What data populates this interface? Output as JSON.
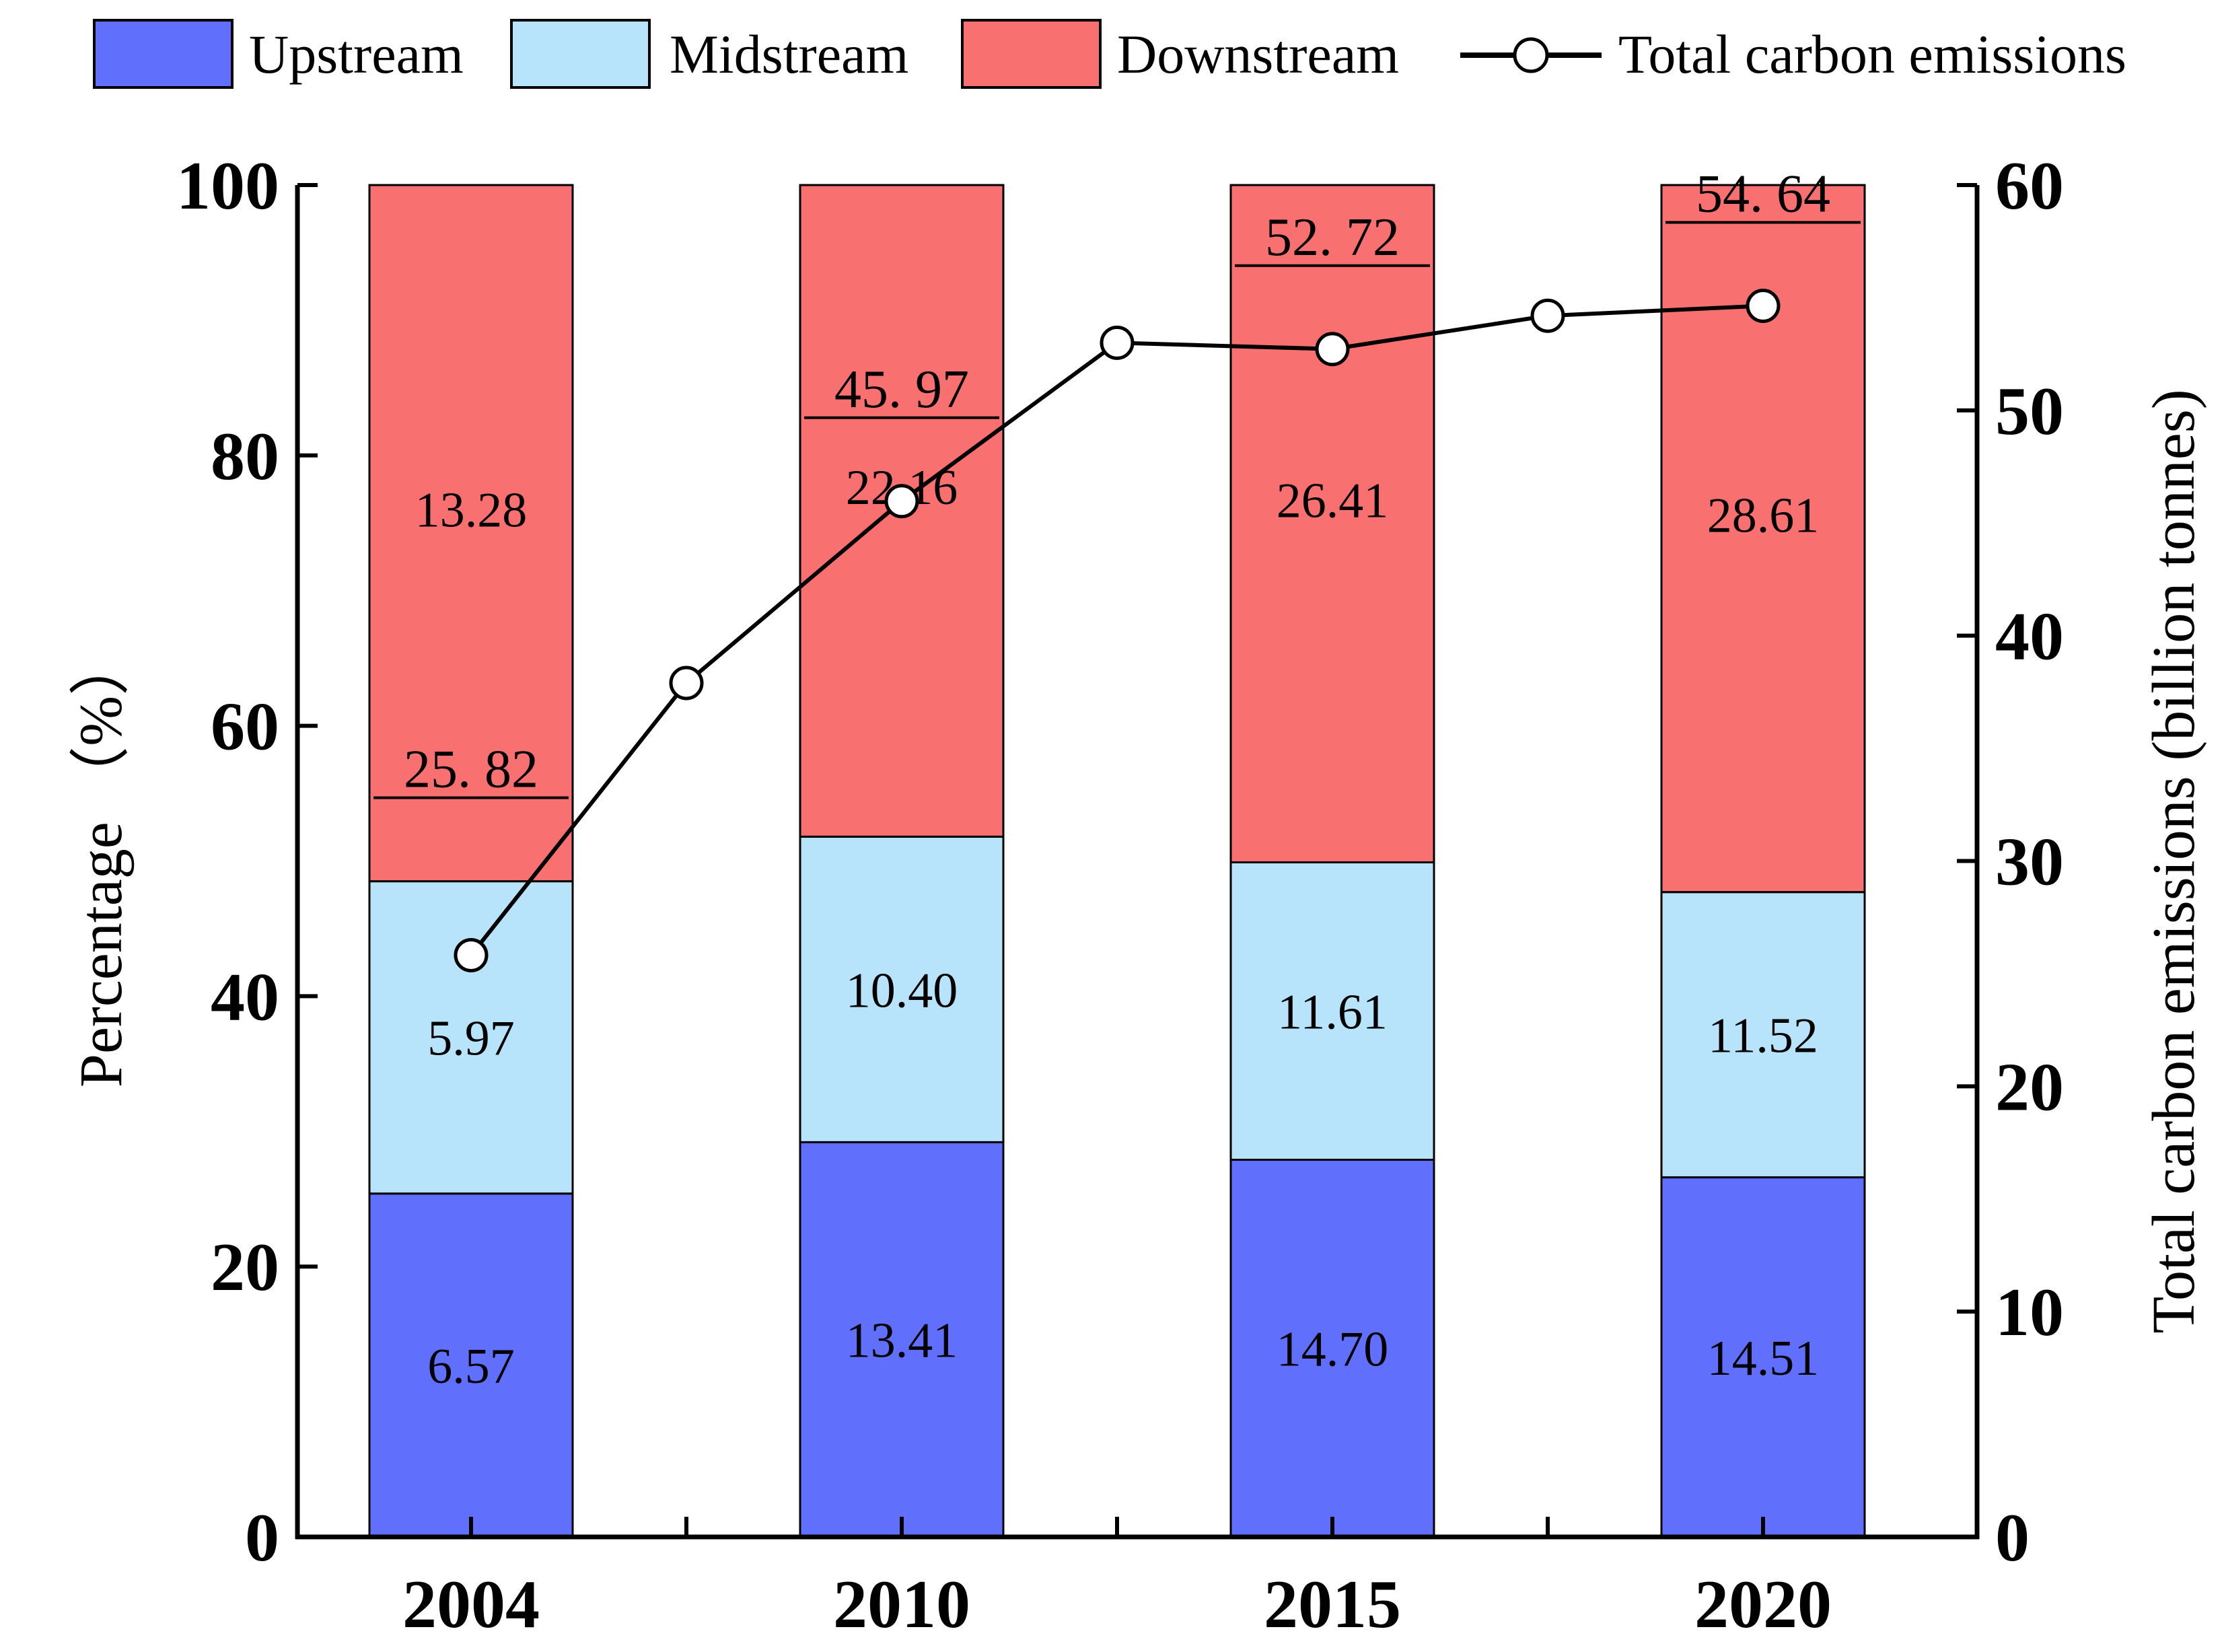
{
  "chart_data": {
    "type": "bar",
    "stacked": true,
    "categories": [
      "2004",
      "2010",
      "2015",
      "2020"
    ],
    "series": [
      {
        "name": "Upstream",
        "color": "#6070fd",
        "labels": [
          "6.57",
          "13.41",
          "14.70",
          "14.51"
        ],
        "values": [
          6.57,
          13.41,
          14.7,
          14.51
        ],
        "percent": [
          25.4,
          29.2,
          27.9,
          26.6
        ]
      },
      {
        "name": "Midstream",
        "color": "#b8e4fb",
        "labels": [
          "5.97",
          "10.40",
          "11.61",
          "11.52"
        ],
        "values": [
          5.97,
          10.4,
          11.61,
          11.52
        ],
        "percent": [
          23.1,
          22.6,
          22.0,
          21.1
        ]
      },
      {
        "name": "Downstream",
        "color": "#f97070",
        "labels": [
          "13.28",
          "22.16",
          "26.41",
          "28.61"
        ],
        "values": [
          13.28,
          22.16,
          26.41,
          28.61
        ],
        "percent": [
          51.5,
          48.2,
          50.1,
          52.3
        ]
      }
    ],
    "line": {
      "name": "Total carbon emissions",
      "x": [
        0,
        0.5,
        1,
        1.5,
        2,
        2.5,
        3
      ],
      "values": [
        25.82,
        37.9,
        45.97,
        53.0,
        52.72,
        54.2,
        54.64
      ],
      "labels": [
        "25. 82",
        "45. 97",
        "52. 72",
        "54. 64"
      ],
      "labeled_points": [
        0,
        2,
        4,
        6
      ]
    },
    "ylabel": "Percentage （%）",
    "y2label": "Total carbon emissions (billion tonnes)",
    "ylim": [
      0,
      100
    ],
    "y2lim": [
      0,
      60
    ],
    "yticks": [
      "0",
      "20",
      "40",
      "60",
      "80",
      "100"
    ],
    "y2ticks": [
      "0",
      "10",
      "20",
      "30",
      "40",
      "50",
      "60"
    ],
    "legend_position": "top"
  }
}
